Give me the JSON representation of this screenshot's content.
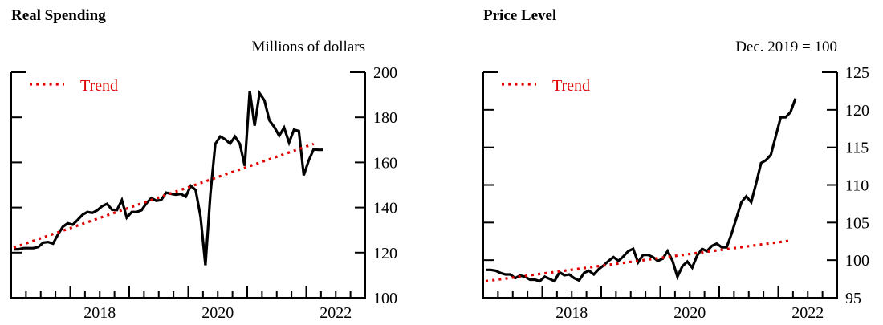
{
  "chart_data": [
    {
      "type": "line",
      "title": "Real Spending",
      "ylabel": "Millions of dollars",
      "xlabel": "",
      "ylim": [
        100,
        200
      ],
      "xlim": [
        "2017-01",
        "2022-12"
      ],
      "yticks": [
        100,
        120,
        140,
        160,
        180,
        200
      ],
      "ytick_labels": [
        "100",
        "120",
        "140",
        "160",
        "180",
        "200"
      ],
      "xtick_labels": [
        "2018",
        "2020",
        "2022"
      ],
      "legend": "top-left",
      "grid": false,
      "colors": {
        "series": "#000000",
        "trend": "#e00000"
      },
      "series": [
        {
          "style": "solid",
          "points": [
            [
              "2017-01",
              121.5
            ],
            [
              "2017-02",
              121.5
            ],
            [
              "2017-03",
              122
            ],
            [
              "2017-04",
              122
            ],
            [
              "2017-05",
              122
            ],
            [
              "2017-06",
              122.5
            ],
            [
              "2017-07",
              124.4
            ],
            [
              "2017-08",
              124.7
            ],
            [
              "2017-09",
              124
            ],
            [
              "2017-10",
              128
            ],
            [
              "2017-11",
              131.5
            ],
            [
              "2017-12",
              133
            ],
            [
              "2018-01",
              132.4
            ],
            [
              "2018-02",
              134.5
            ],
            [
              "2018-03",
              136.8
            ],
            [
              "2018-04",
              138
            ],
            [
              "2018-05",
              137.6
            ],
            [
              "2018-06",
              138.8
            ],
            [
              "2018-07",
              140.6
            ],
            [
              "2018-08",
              141.6
            ],
            [
              "2018-09",
              139
            ],
            [
              "2018-10",
              138.9
            ],
            [
              "2018-11",
              143.3
            ],
            [
              "2018-12",
              135.5
            ],
            [
              "2019-01",
              138
            ],
            [
              "2019-02",
              138
            ],
            [
              "2019-03",
              138.8
            ],
            [
              "2019-04",
              141.9
            ],
            [
              "2019-05",
              144.2
            ],
            [
              "2019-06",
              143
            ],
            [
              "2019-07",
              143.3
            ],
            [
              "2019-08",
              146.6
            ],
            [
              "2019-09",
              146.1
            ],
            [
              "2019-10",
              145.7
            ],
            [
              "2019-11",
              146
            ],
            [
              "2019-12",
              144.8
            ],
            [
              "2020-01",
              149.6
            ],
            [
              "2020-02",
              147.8
            ],
            [
              "2020-03",
              136
            ],
            [
              "2020-04",
              114.4
            ],
            [
              "2020-05",
              146
            ],
            [
              "2020-06",
              168.2
            ],
            [
              "2020-07",
              171.5
            ],
            [
              "2020-08",
              170.3
            ],
            [
              "2020-09",
              168.3
            ],
            [
              "2020-10",
              171.5
            ],
            [
              "2020-11",
              168.2
            ],
            [
              "2020-12",
              158.5
            ],
            [
              "2021-01",
              191.7
            ],
            [
              "2021-02",
              176.3
            ],
            [
              "2021-03",
              190.7
            ],
            [
              "2021-04",
              187.5
            ],
            [
              "2021-05",
              178.6
            ],
            [
              "2021-06",
              175.7
            ],
            [
              "2021-07",
              171.8
            ],
            [
              "2021-08",
              175.4
            ],
            [
              "2021-09",
              168.8
            ],
            [
              "2021-10",
              174.5
            ],
            [
              "2021-11",
              173.9
            ],
            [
              "2021-12",
              154.3
            ],
            [
              "2022-01",
              160.9
            ],
            [
              "2022-02",
              165.8
            ],
            [
              "2022-03",
              165.6
            ],
            [
              "2022-04",
              165.6
            ]
          ]
        },
        {
          "name": "Trend",
          "style": "dotted",
          "points": [
            [
              "2017-01",
              122.2
            ],
            [
              "2022-02",
              168.2
            ]
          ]
        }
      ]
    },
    {
      "type": "line",
      "title": "Price Level",
      "ylabel": "Dec. 2019 = 100",
      "xlabel": "",
      "ylim": [
        95,
        125
      ],
      "xlim": [
        "2017-01",
        "2022-12"
      ],
      "yticks": [
        95,
        100,
        105,
        110,
        115,
        120,
        125
      ],
      "ytick_labels": [
        "95",
        "100",
        "105",
        "110",
        "115",
        "120",
        "125"
      ],
      "xtick_labels": [
        "2018",
        "2020",
        "2022"
      ],
      "legend": "top-left",
      "grid": false,
      "colors": {
        "series": "#000000",
        "trend": "#e00000"
      },
      "series": [
        {
          "style": "solid",
          "points": [
            [
              "2017-01",
              98.7
            ],
            [
              "2017-02",
              98.7
            ],
            [
              "2017-03",
              98.6
            ],
            [
              "2017-04",
              98.3
            ],
            [
              "2017-05",
              98.1
            ],
            [
              "2017-06",
              98.1
            ],
            [
              "2017-07",
              97.6
            ],
            [
              "2017-08",
              97.95
            ],
            [
              "2017-09",
              97.8
            ],
            [
              "2017-10",
              97.4
            ],
            [
              "2017-11",
              97.4
            ],
            [
              "2017-12",
              97.2
            ],
            [
              "2018-01",
              97.8
            ],
            [
              "2018-02",
              97.5
            ],
            [
              "2018-03",
              97.2
            ],
            [
              "2018-04",
              98.4
            ],
            [
              "2018-05",
              98.0
            ],
            [
              "2018-06",
              98.1
            ],
            [
              "2018-07",
              97.6
            ],
            [
              "2018-08",
              97.3
            ],
            [
              "2018-09",
              98.3
            ],
            [
              "2018-10",
              98.6
            ],
            [
              "2018-11",
              98.1
            ],
            [
              "2018-12",
              98.8
            ],
            [
              "2019-01",
              99.3
            ],
            [
              "2019-02",
              99.9
            ],
            [
              "2019-03",
              100.4
            ],
            [
              "2019-04",
              99.9
            ],
            [
              "2019-05",
              100.5
            ],
            [
              "2019-06",
              101.2
            ],
            [
              "2019-07",
              101.5
            ],
            [
              "2019-08",
              99.7
            ],
            [
              "2019-09",
              100.7
            ],
            [
              "2019-10",
              100.7
            ],
            [
              "2019-11",
              100.4
            ],
            [
              "2019-12",
              99.9
            ],
            [
              "2020-01",
              100.2
            ],
            [
              "2020-02",
              101.2
            ],
            [
              "2020-03",
              99.9
            ],
            [
              "2020-04",
              97.8
            ],
            [
              "2020-05",
              99.2
            ],
            [
              "2020-06",
              99.8
            ],
            [
              "2020-07",
              99.0
            ],
            [
              "2020-08",
              100.6
            ],
            [
              "2020-09",
              101.5
            ],
            [
              "2020-10",
              101.2
            ],
            [
              "2020-11",
              101.9
            ],
            [
              "2020-12",
              102.2
            ],
            [
              "2021-01",
              101.7
            ],
            [
              "2021-02",
              101.7
            ],
            [
              "2021-03",
              103.5
            ],
            [
              "2021-04",
              105.6
            ],
            [
              "2021-05",
              107.7
            ],
            [
              "2021-06",
              108.5
            ],
            [
              "2021-07",
              107.7
            ],
            [
              "2021-08",
              110.2
            ],
            [
              "2021-09",
              112.9
            ],
            [
              "2021-10",
              113.3
            ],
            [
              "2021-11",
              114.0
            ],
            [
              "2021-12",
              116.5
            ],
            [
              "2022-01",
              119.0
            ],
            [
              "2022-02",
              119.0
            ],
            [
              "2022-03",
              119.7
            ],
            [
              "2022-04",
              121.5
            ]
          ]
        },
        {
          "name": "Trend",
          "style": "dotted",
          "points": [
            [
              "2017-01",
              97.2
            ],
            [
              "2022-03",
              102.6
            ]
          ]
        }
      ]
    }
  ]
}
